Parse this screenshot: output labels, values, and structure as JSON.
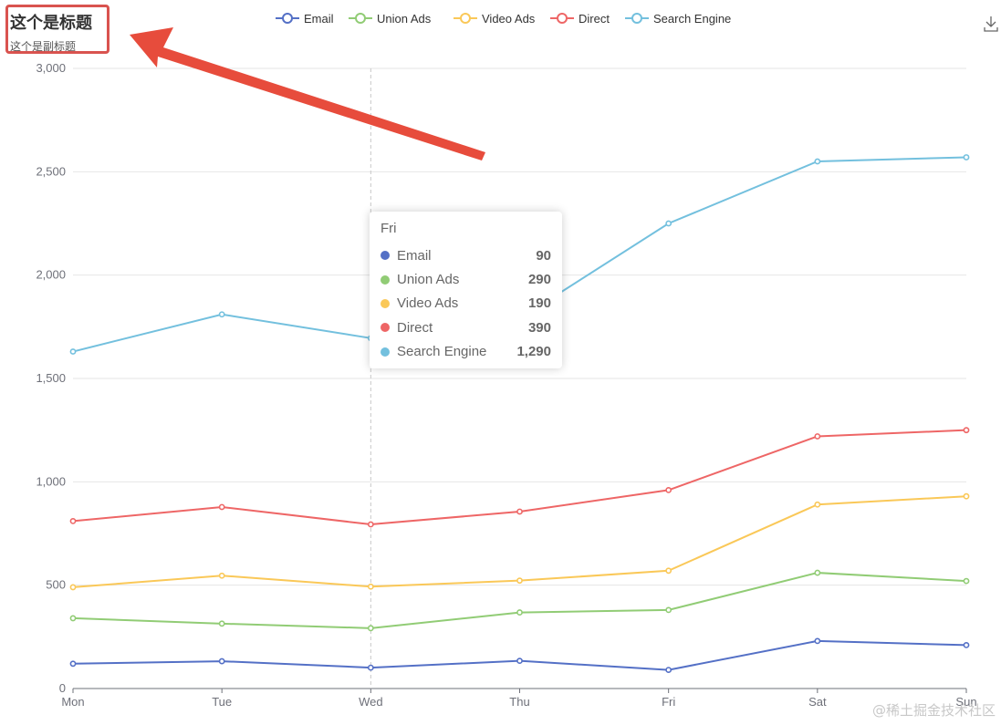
{
  "title": "这个是标题",
  "subtitle": "这个是副标题",
  "watermark": "@稀土掘金技术社区",
  "colors": {
    "Email": "#5470c6",
    "Union Ads": "#91cc75",
    "Video Ads": "#fac858",
    "Direct": "#ee6666",
    "Search Engine": "#73c0de",
    "annotation": "#e74c3c"
  },
  "toolbar": {
    "download_icon": "download-icon"
  },
  "tooltip": {
    "header": "Fri",
    "rows": [
      {
        "name": "Email",
        "value": "90"
      },
      {
        "name": "Union Ads",
        "value": "290"
      },
      {
        "name": "Video Ads",
        "value": "190"
      },
      {
        "name": "Direct",
        "value": "390"
      },
      {
        "name": "Search Engine",
        "value": "1,290"
      }
    ]
  },
  "chart_data": {
    "type": "line",
    "title": "这个是标题",
    "subtitle": "这个是副标题",
    "categories": [
      "Mon",
      "Tue",
      "Wed",
      "Thu",
      "Fri",
      "Sat",
      "Sun"
    ],
    "ylim": [
      0,
      3000
    ],
    "yticks": [
      "0",
      "500",
      "1,000",
      "1,500",
      "2,000",
      "2,500",
      "3,000"
    ],
    "legend_position": "top-center",
    "stacked": true,
    "series": [
      {
        "name": "Email",
        "values": [
          120,
          132,
          101,
          134,
          90,
          230,
          210
        ]
      },
      {
        "name": "Union Ads",
        "values": [
          220,
          182,
          191,
          234,
          290,
          330,
          310
        ]
      },
      {
        "name": "Video Ads",
        "values": [
          150,
          232,
          201,
          154,
          190,
          330,
          410
        ]
      },
      {
        "name": "Direct",
        "values": [
          320,
          332,
          301,
          334,
          390,
          330,
          320
        ]
      },
      {
        "name": "Search Engine",
        "values": [
          820,
          932,
          901,
          934,
          1290,
          1330,
          1320
        ]
      }
    ],
    "cumulative": [
      [
        120,
        132,
        101,
        134,
        90,
        230,
        210
      ],
      [
        340,
        314,
        292,
        368,
        380,
        560,
        520
      ],
      [
        490,
        546,
        493,
        522,
        570,
        890,
        930
      ],
      [
        810,
        878,
        794,
        856,
        960,
        1220,
        1250
      ],
      [
        1630,
        1810,
        1695,
        1790,
        2250,
        2550,
        2570
      ]
    ],
    "hover_category": "Fri"
  }
}
